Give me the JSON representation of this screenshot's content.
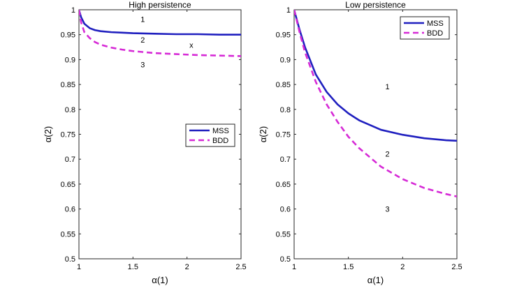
{
  "chart_data": [
    {
      "type": "line",
      "title": "High persistence",
      "xlabel": "α(1)",
      "ylabel": "α(2)",
      "xlim": [
        1,
        2.5
      ],
      "ylim": [
        0.5,
        1
      ],
      "xticks": [
        "1",
        "1.5",
        "2",
        "2.5"
      ],
      "yticks": [
        "0.5",
        "0.55",
        "0.6",
        "0.65",
        "0.7",
        "0.75",
        "0.8",
        "0.85",
        "0.9",
        "0.95",
        "1"
      ],
      "grid": false,
      "legend": "center-right",
      "series": [
        {
          "name": "MSS",
          "color": "#1f1fbf",
          "style": "solid",
          "x": [
            1.0,
            1.02,
            1.05,
            1.1,
            1.15,
            1.2,
            1.3,
            1.4,
            1.5,
            1.7,
            1.9,
            2.1,
            2.3,
            2.5
          ],
          "y": [
            1.0,
            0.985,
            0.972,
            0.963,
            0.959,
            0.957,
            0.955,
            0.954,
            0.953,
            0.952,
            0.951,
            0.951,
            0.95,
            0.95
          ]
        },
        {
          "name": "BDD",
          "color": "#d62ad6",
          "style": "dashed",
          "x": [
            1.0,
            1.02,
            1.05,
            1.1,
            1.15,
            1.2,
            1.3,
            1.4,
            1.5,
            1.7,
            1.9,
            2.1,
            2.3,
            2.5
          ],
          "y": [
            1.0,
            0.975,
            0.955,
            0.943,
            0.935,
            0.93,
            0.924,
            0.92,
            0.917,
            0.913,
            0.911,
            0.909,
            0.908,
            0.907
          ]
        }
      ],
      "annotations": [
        {
          "text": "1",
          "x": 1.59,
          "y": 0.981
        },
        {
          "text": "2",
          "x": 1.59,
          "y": 0.94
        },
        {
          "text": "3",
          "x": 1.59,
          "y": 0.89
        },
        {
          "text": "x",
          "x": 2.04,
          "y": 0.929
        }
      ]
    },
    {
      "type": "line",
      "title": "Low persistence",
      "xlabel": "α(1)",
      "ylabel": "α(2)",
      "xlim": [
        1,
        2.5
      ],
      "ylim": [
        0.5,
        1
      ],
      "xticks": [
        "1",
        "1.5",
        "2",
        "2.5"
      ],
      "yticks": [
        "0.5",
        "0.55",
        "0.6",
        "0.65",
        "0.7",
        "0.75",
        "0.8",
        "0.85",
        "0.9",
        "0.95",
        "1"
      ],
      "grid": false,
      "legend": "top-right",
      "series": [
        {
          "name": "MSS",
          "color": "#1f1fbf",
          "style": "solid",
          "x": [
            1.0,
            1.05,
            1.1,
            1.2,
            1.3,
            1.4,
            1.5,
            1.6,
            1.8,
            2.0,
            2.2,
            2.4,
            2.5
          ],
          "y": [
            1.0,
            0.96,
            0.925,
            0.87,
            0.835,
            0.81,
            0.792,
            0.778,
            0.759,
            0.749,
            0.742,
            0.738,
            0.737
          ]
        },
        {
          "name": "BDD",
          "color": "#d62ad6",
          "style": "dashed",
          "x": [
            1.0,
            1.05,
            1.1,
            1.2,
            1.3,
            1.4,
            1.5,
            1.6,
            1.8,
            2.0,
            2.2,
            2.4,
            2.5
          ],
          "y": [
            1.0,
            0.955,
            0.915,
            0.855,
            0.81,
            0.775,
            0.745,
            0.722,
            0.685,
            0.66,
            0.642,
            0.63,
            0.625
          ]
        }
      ],
      "annotations": [
        {
          "text": "1",
          "x": 1.86,
          "y": 0.846
        },
        {
          "text": "2",
          "x": 1.86,
          "y": 0.711
        },
        {
          "text": "3",
          "x": 1.86,
          "y": 0.6
        }
      ]
    }
  ]
}
